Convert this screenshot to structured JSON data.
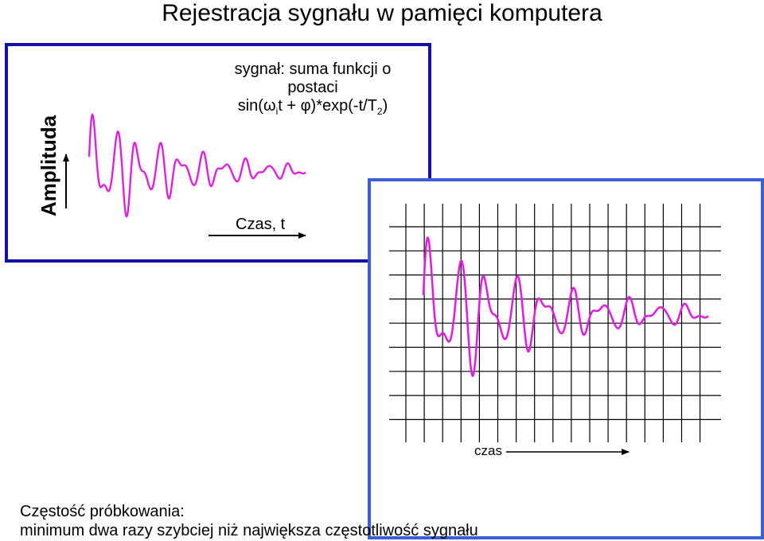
{
  "title": "Rejestracja sygnału w pamięci komputera",
  "left_panel": {
    "y_axis_label": "Amplituda",
    "x_axis_label": "Czas, t",
    "formula_line1": "sygnał: suma funkcji o",
    "formula_line2": "postaci",
    "formula_line3_pre": "sin(ω",
    "formula_line3_sub_i": "i",
    "formula_line3_mid": "t + φ)*exp(-t/T",
    "formula_line3_sub_2": "2",
    "formula_line3_post": ")"
  },
  "right_panel": {
    "x_axis_label": "czas"
  },
  "footer": {
    "line1": "Częstość próbkowania:",
    "line2": "minimum dwa razy szybciej niż największa częstotliwość sygnału"
  },
  "colors": {
    "signal": "#dd22dd",
    "box1_border": "#1111a8",
    "box2_border": "#3a5fd6",
    "grid": "#000000"
  }
}
